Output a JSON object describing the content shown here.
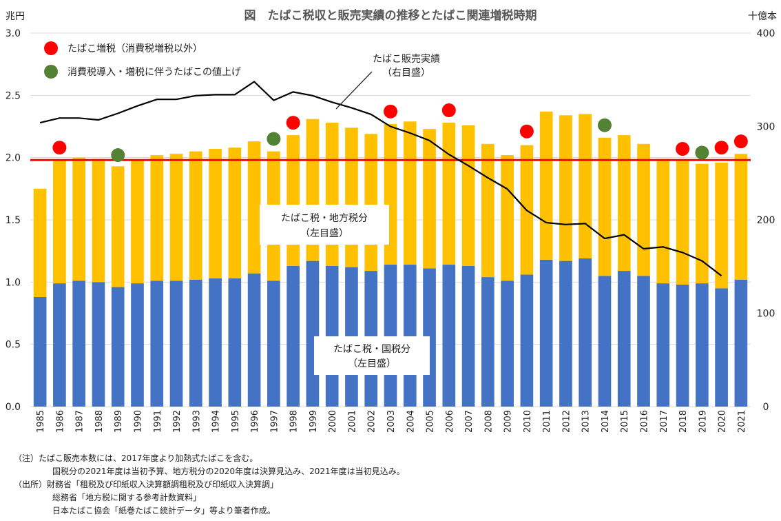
{
  "chart_data": {
    "type": "bar",
    "title": "図　たばこ税収と販売実績の推移とたばこ関連増税時期",
    "left_axis_unit": "兆円",
    "right_axis_unit": "十億本",
    "left_ticks": [
      "0.0",
      "0.5",
      "1.0",
      "1.5",
      "2.0",
      "2.5",
      "3.0"
    ],
    "right_ticks": [
      "0",
      "100",
      "200",
      "300",
      "400"
    ],
    "ylim_left": [
      0,
      3.0
    ],
    "ylim_right": [
      0,
      400
    ],
    "grid": true,
    "categories": [
      "1985",
      "1986",
      "1987",
      "1988",
      "1989",
      "1990",
      "1991",
      "1992",
      "1993",
      "1994",
      "1995",
      "1996",
      "1997",
      "1998",
      "1999",
      "2000",
      "2001",
      "2002",
      "2003",
      "2004",
      "2005",
      "2006",
      "2007",
      "2008",
      "2009",
      "2010",
      "2011",
      "2012",
      "2013",
      "2014",
      "2015",
      "2016",
      "2017",
      "2018",
      "2019",
      "2020",
      "2021"
    ],
    "series": [
      {
        "name": "たばこ税・国税分",
        "sublabel": "（左目盛）",
        "color": "#4472C4",
        "axis": "left",
        "values": [
          0.88,
          0.99,
          1.01,
          1.0,
          0.96,
          0.99,
          1.01,
          1.01,
          1.02,
          1.03,
          1.03,
          1.07,
          1.01,
          1.13,
          1.17,
          1.13,
          1.12,
          1.09,
          1.14,
          1.14,
          1.11,
          1.14,
          1.13,
          1.04,
          1.01,
          1.06,
          1.18,
          1.17,
          1.19,
          1.05,
          1.09,
          1.05,
          0.99,
          0.98,
          0.99,
          0.95,
          1.02
        ]
      },
      {
        "name": "たばこ税・地方税分",
        "sublabel": "（左目盛）",
        "color": "#FFC000",
        "axis": "left",
        "values": [
          0.87,
          0.99,
          0.99,
          0.99,
          0.97,
          0.99,
          1.01,
          1.02,
          1.03,
          1.04,
          1.05,
          1.06,
          1.04,
          1.05,
          1.14,
          1.15,
          1.12,
          1.1,
          1.13,
          1.15,
          1.12,
          1.14,
          1.13,
          1.07,
          1.01,
          1.04,
          1.19,
          1.17,
          1.16,
          1.11,
          1.09,
          1.06,
          1.0,
          1.0,
          0.96,
          1.01,
          1.01
        ]
      },
      {
        "name": "たばこ販売実績",
        "sublabel": "（右目盛）",
        "color": "#000000",
        "axis": "right",
        "type": "line",
        "values": [
          304,
          309,
          309,
          307,
          314,
          322,
          329,
          329,
          333,
          334,
          334,
          348,
          328,
          337,
          333,
          326,
          320,
          313,
          300,
          293,
          285,
          270,
          258,
          245,
          233,
          210,
          197,
          195,
          196,
          180,
          184,
          169,
          171,
          165,
          156,
          140,
          null
        ]
      }
    ],
    "reference_line": {
      "value": 1.98,
      "color": "#FF0000"
    },
    "markers": {
      "tax_increase": {
        "label": "たばこ増税（消費税増税以外）",
        "color": "#FF0000",
        "points": [
          {
            "year": "1986",
            "value": 2.08
          },
          {
            "year": "1998",
            "value": 2.28
          },
          {
            "year": "2003",
            "value": 2.37
          },
          {
            "year": "2006",
            "value": 2.38
          },
          {
            "year": "2010",
            "value": 2.21
          },
          {
            "year": "2018",
            "value": 2.07
          },
          {
            "year": "2020",
            "value": 2.08
          },
          {
            "year": "2021",
            "value": 2.13
          }
        ]
      },
      "consumption_tax": {
        "label": "消費税導入・増税に伴うたばこの値上げ",
        "color": "#548235",
        "points": [
          {
            "year": "1989",
            "value": 2.02
          },
          {
            "year": "1997",
            "value": 2.15
          },
          {
            "year": "2014",
            "value": 2.26
          },
          {
            "year": "2019",
            "value": 2.04
          }
        ]
      }
    }
  },
  "notes": [
    "（注）たばこ販売本数には、2017年度より加熱式たばこを含む。",
    "国税分の2021年度は当初予算、地方税分の2020年度は決算見込み、2021年度は当初見込み。",
    "（出所）財務省「租税及び印紙収入決算額調租税及び印紙収入決算調」",
    "総務省「地方税に関する参考計数資料」",
    "日本たばこ協会「紙巻たばこ統計データ」等より筆者作成。"
  ]
}
